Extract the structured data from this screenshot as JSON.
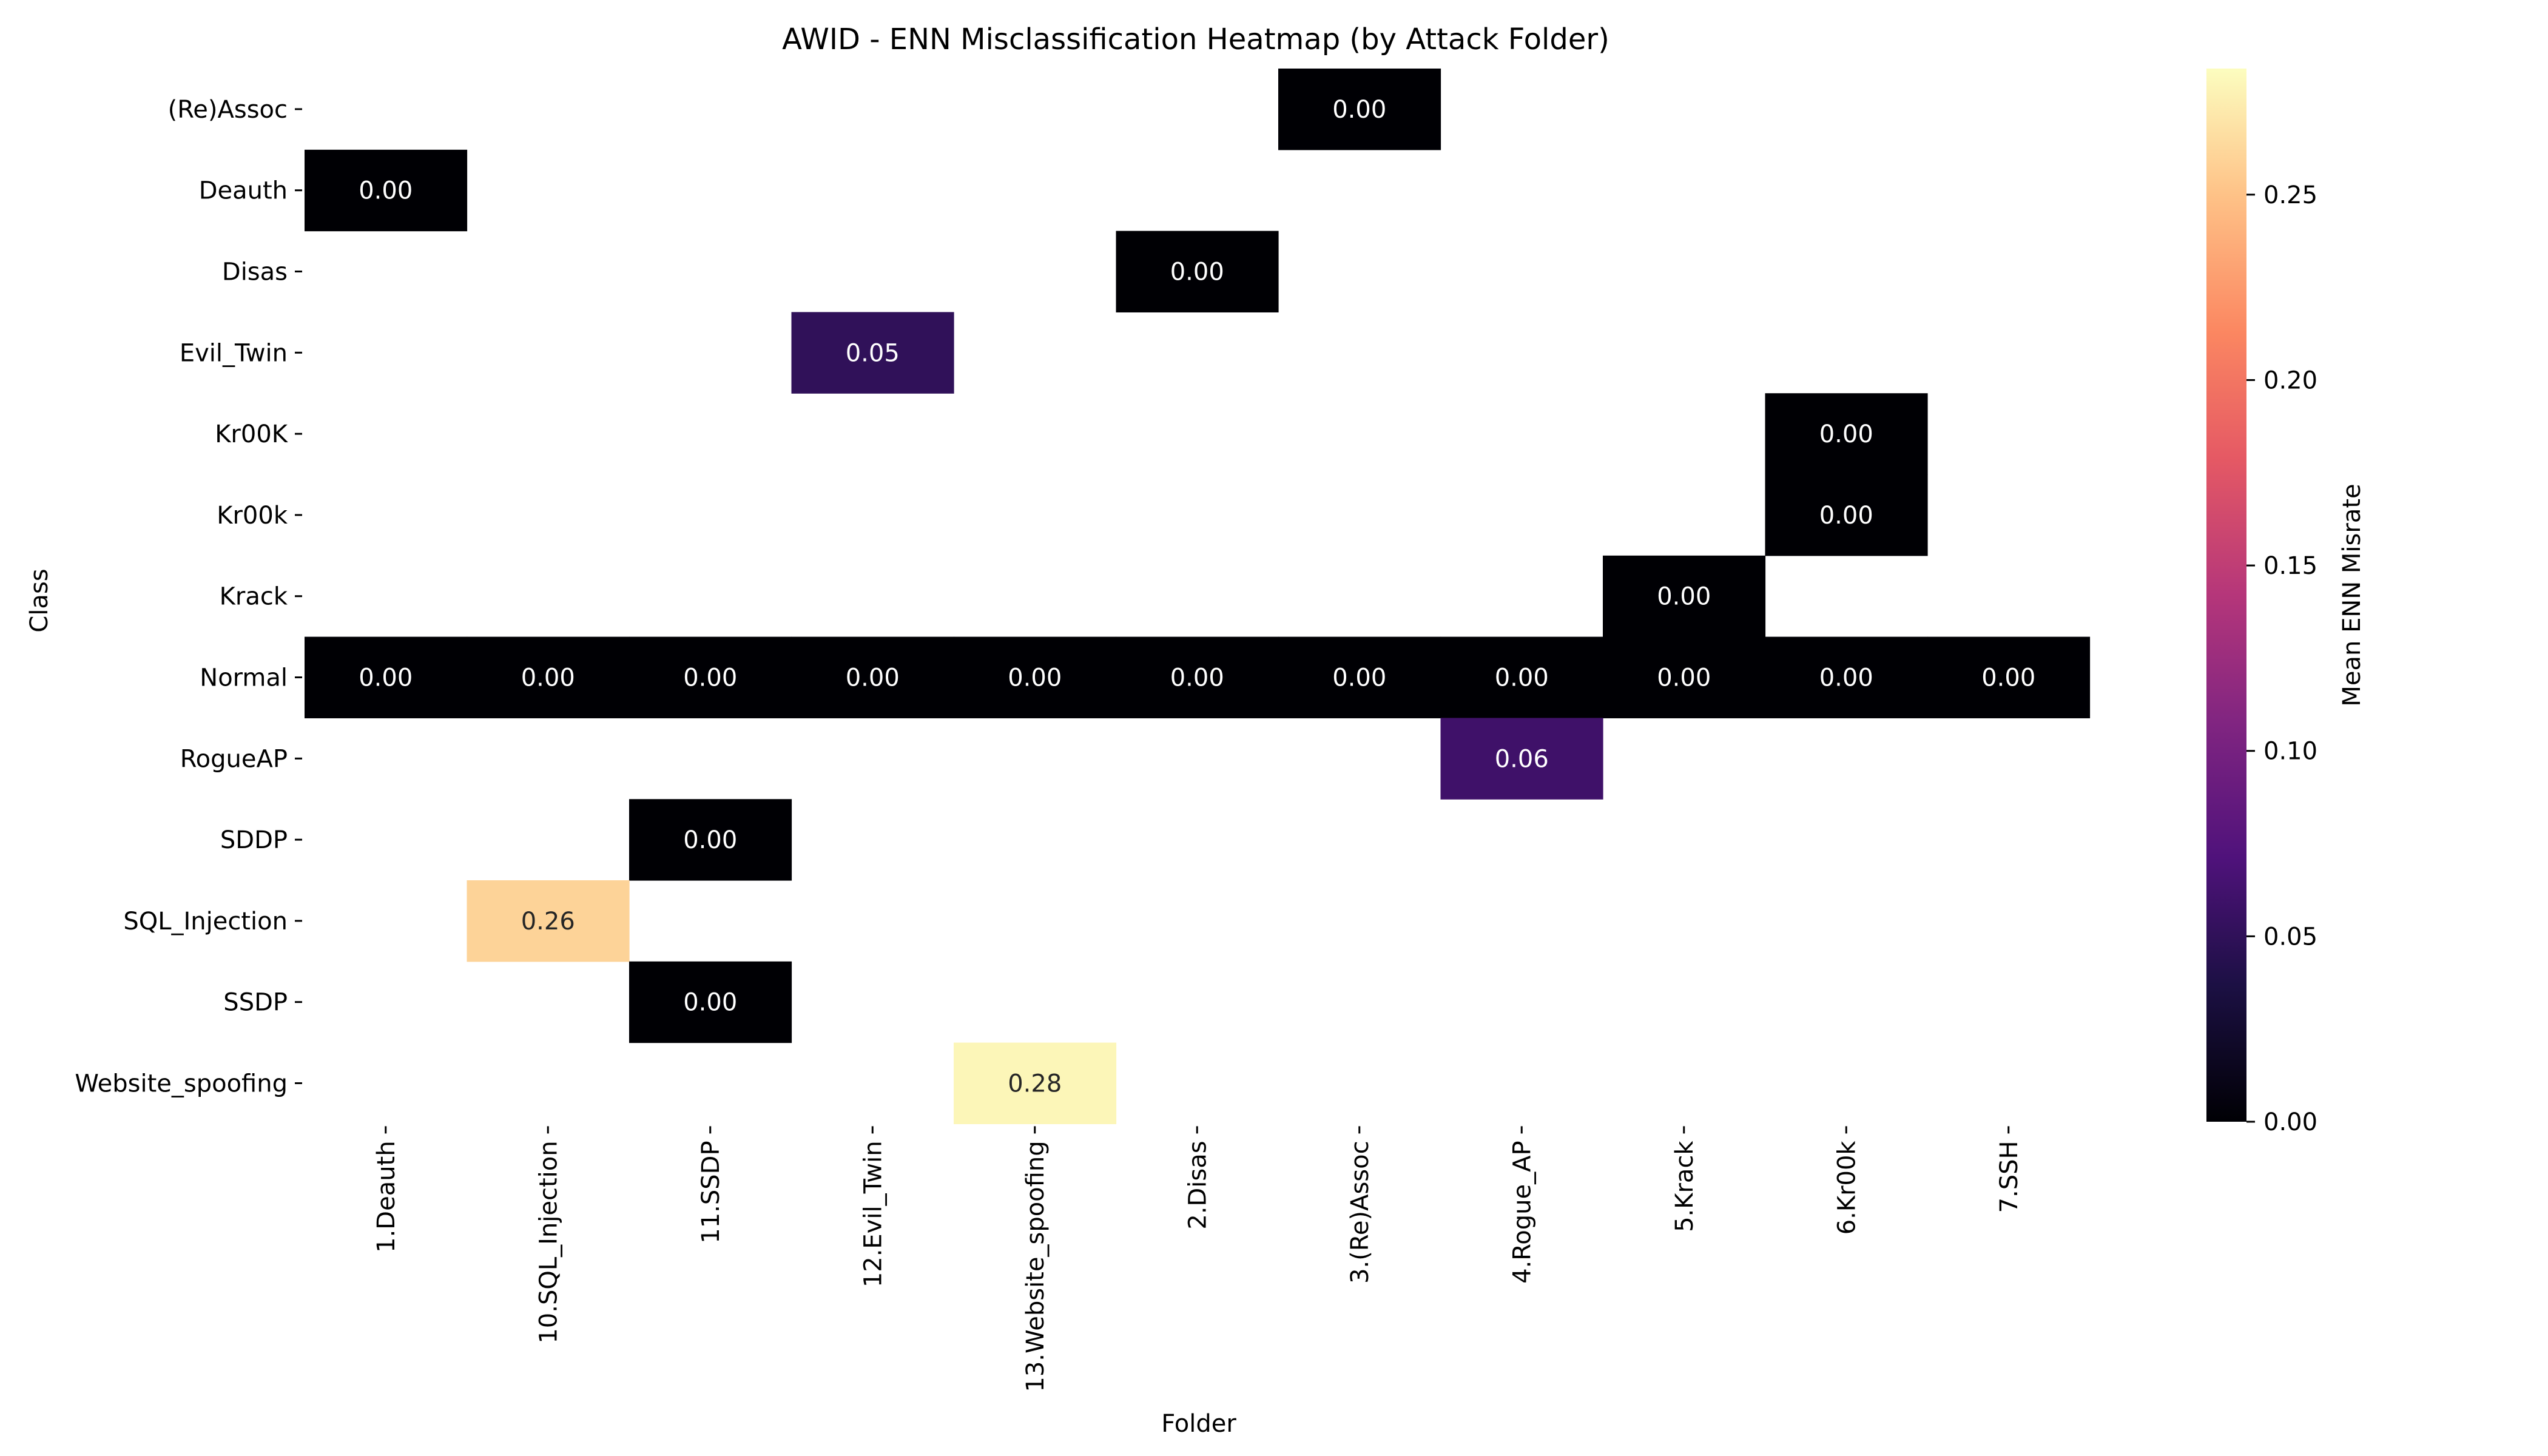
{
  "chart_data": {
    "type": "heatmap",
    "title": "AWID - ENN Misclassification Heatmap (by Attack Folder)",
    "xlabel": "Folder",
    "ylabel": "Class",
    "x_categories": [
      "1.Deauth",
      "10.SQL_Injection",
      "11.SSDP",
      "12.Evil_Twin",
      "13.Website_spoofing",
      "2.Disas",
      "3.(Re)Assoc",
      "4.Rogue_AP",
      "5.Krack",
      "6.Kr00k",
      "7.SSH"
    ],
    "y_categories": [
      "(Re)Assoc",
      "Deauth",
      "Disas",
      "Evil_Twin",
      "Kr00K",
      "Kr00k",
      "Krack",
      "Normal",
      "RogueAP",
      "SDDP",
      "SQL_Injection",
      "SSDP",
      "Website_spoofing"
    ],
    "values": [
      [
        null,
        null,
        null,
        null,
        null,
        null,
        0.0,
        null,
        null,
        null,
        null
      ],
      [
        0.0,
        null,
        null,
        null,
        null,
        null,
        null,
        null,
        null,
        null,
        null
      ],
      [
        null,
        null,
        null,
        null,
        null,
        0.0,
        null,
        null,
        null,
        null,
        null
      ],
      [
        null,
        null,
        null,
        0.05,
        null,
        null,
        null,
        null,
        null,
        null,
        null
      ],
      [
        null,
        null,
        null,
        null,
        null,
        null,
        null,
        null,
        null,
        0.0,
        null
      ],
      [
        null,
        null,
        null,
        null,
        null,
        null,
        null,
        null,
        null,
        0.0,
        null
      ],
      [
        null,
        null,
        null,
        null,
        null,
        null,
        null,
        null,
        0.0,
        null,
        null
      ],
      [
        0.0,
        0.0,
        0.0,
        0.0,
        0.0,
        0.0,
        0.0,
        0.0,
        0.0,
        0.0,
        0.0
      ],
      [
        null,
        null,
        null,
        null,
        null,
        null,
        null,
        0.06,
        null,
        null,
        null
      ],
      [
        null,
        null,
        0.0,
        null,
        null,
        null,
        null,
        null,
        null,
        null,
        null
      ],
      [
        null,
        0.26,
        null,
        null,
        null,
        null,
        null,
        null,
        null,
        null,
        null
      ],
      [
        null,
        null,
        0.0,
        null,
        null,
        null,
        null,
        null,
        null,
        null,
        null
      ],
      [
        null,
        null,
        null,
        null,
        0.28,
        null,
        null,
        null,
        null,
        null,
        null
      ]
    ],
    "value_format": "2 decimals",
    "colormap": "magma",
    "colorbar": {
      "label": "Mean ENN Misrate",
      "range": [
        0.0,
        0.284
      ],
      "ticks": [
        0.0,
        0.05,
        0.1,
        0.15,
        0.2,
        0.25
      ],
      "tick_labels": [
        "0.00",
        "0.05",
        "0.10",
        "0.15",
        "0.20",
        "0.25"
      ]
    },
    "grid": false
  }
}
